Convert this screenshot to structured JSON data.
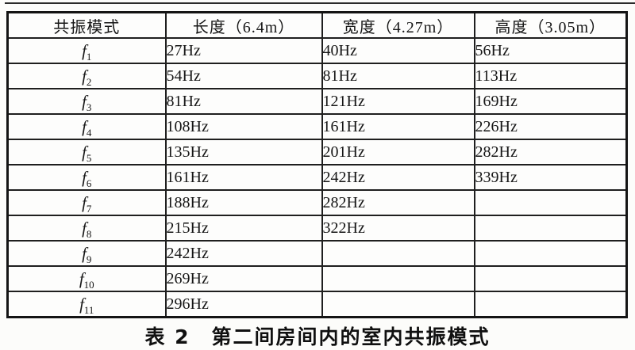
{
  "page": {
    "caption": "表 2　第二间房间内的室内共振模式"
  },
  "table": {
    "headers": [
      "共振模式",
      "长度（6.4m）",
      "宽度（4.27m）",
      "高度（3.05m）"
    ],
    "rows": [
      {
        "mode_base": "f",
        "mode_sub": "1",
        "length": "27Hz",
        "width": "40Hz",
        "height": "56Hz"
      },
      {
        "mode_base": "f",
        "mode_sub": "2",
        "length": "54Hz",
        "width": "81Hz",
        "height": "113Hz"
      },
      {
        "mode_base": "f",
        "mode_sub": "3",
        "length": "81Hz",
        "width": "121Hz",
        "height": "169Hz"
      },
      {
        "mode_base": "f",
        "mode_sub": "4",
        "length": "108Hz",
        "width": "161Hz",
        "height": "226Hz"
      },
      {
        "mode_base": "f",
        "mode_sub": "5",
        "length": "135Hz",
        "width": "201Hz",
        "height": "282Hz"
      },
      {
        "mode_base": "f",
        "mode_sub": "6",
        "length": "161Hz",
        "width": "242Hz",
        "height": "339Hz"
      },
      {
        "mode_base": "f",
        "mode_sub": "7",
        "length": "188Hz",
        "width": "282Hz",
        "height": ""
      },
      {
        "mode_base": "f",
        "mode_sub": "8",
        "length": "215Hz",
        "width": "322Hz",
        "height": ""
      },
      {
        "mode_base": "f",
        "mode_sub": "9",
        "length": "242Hz",
        "width": "",
        "height": ""
      },
      {
        "mode_base": "f",
        "mode_sub": "10",
        "length": "269Hz",
        "width": "",
        "height": ""
      },
      {
        "mode_base": "f",
        "mode_sub": "11",
        "length": "296Hz",
        "width": "",
        "height": ""
      }
    ]
  }
}
